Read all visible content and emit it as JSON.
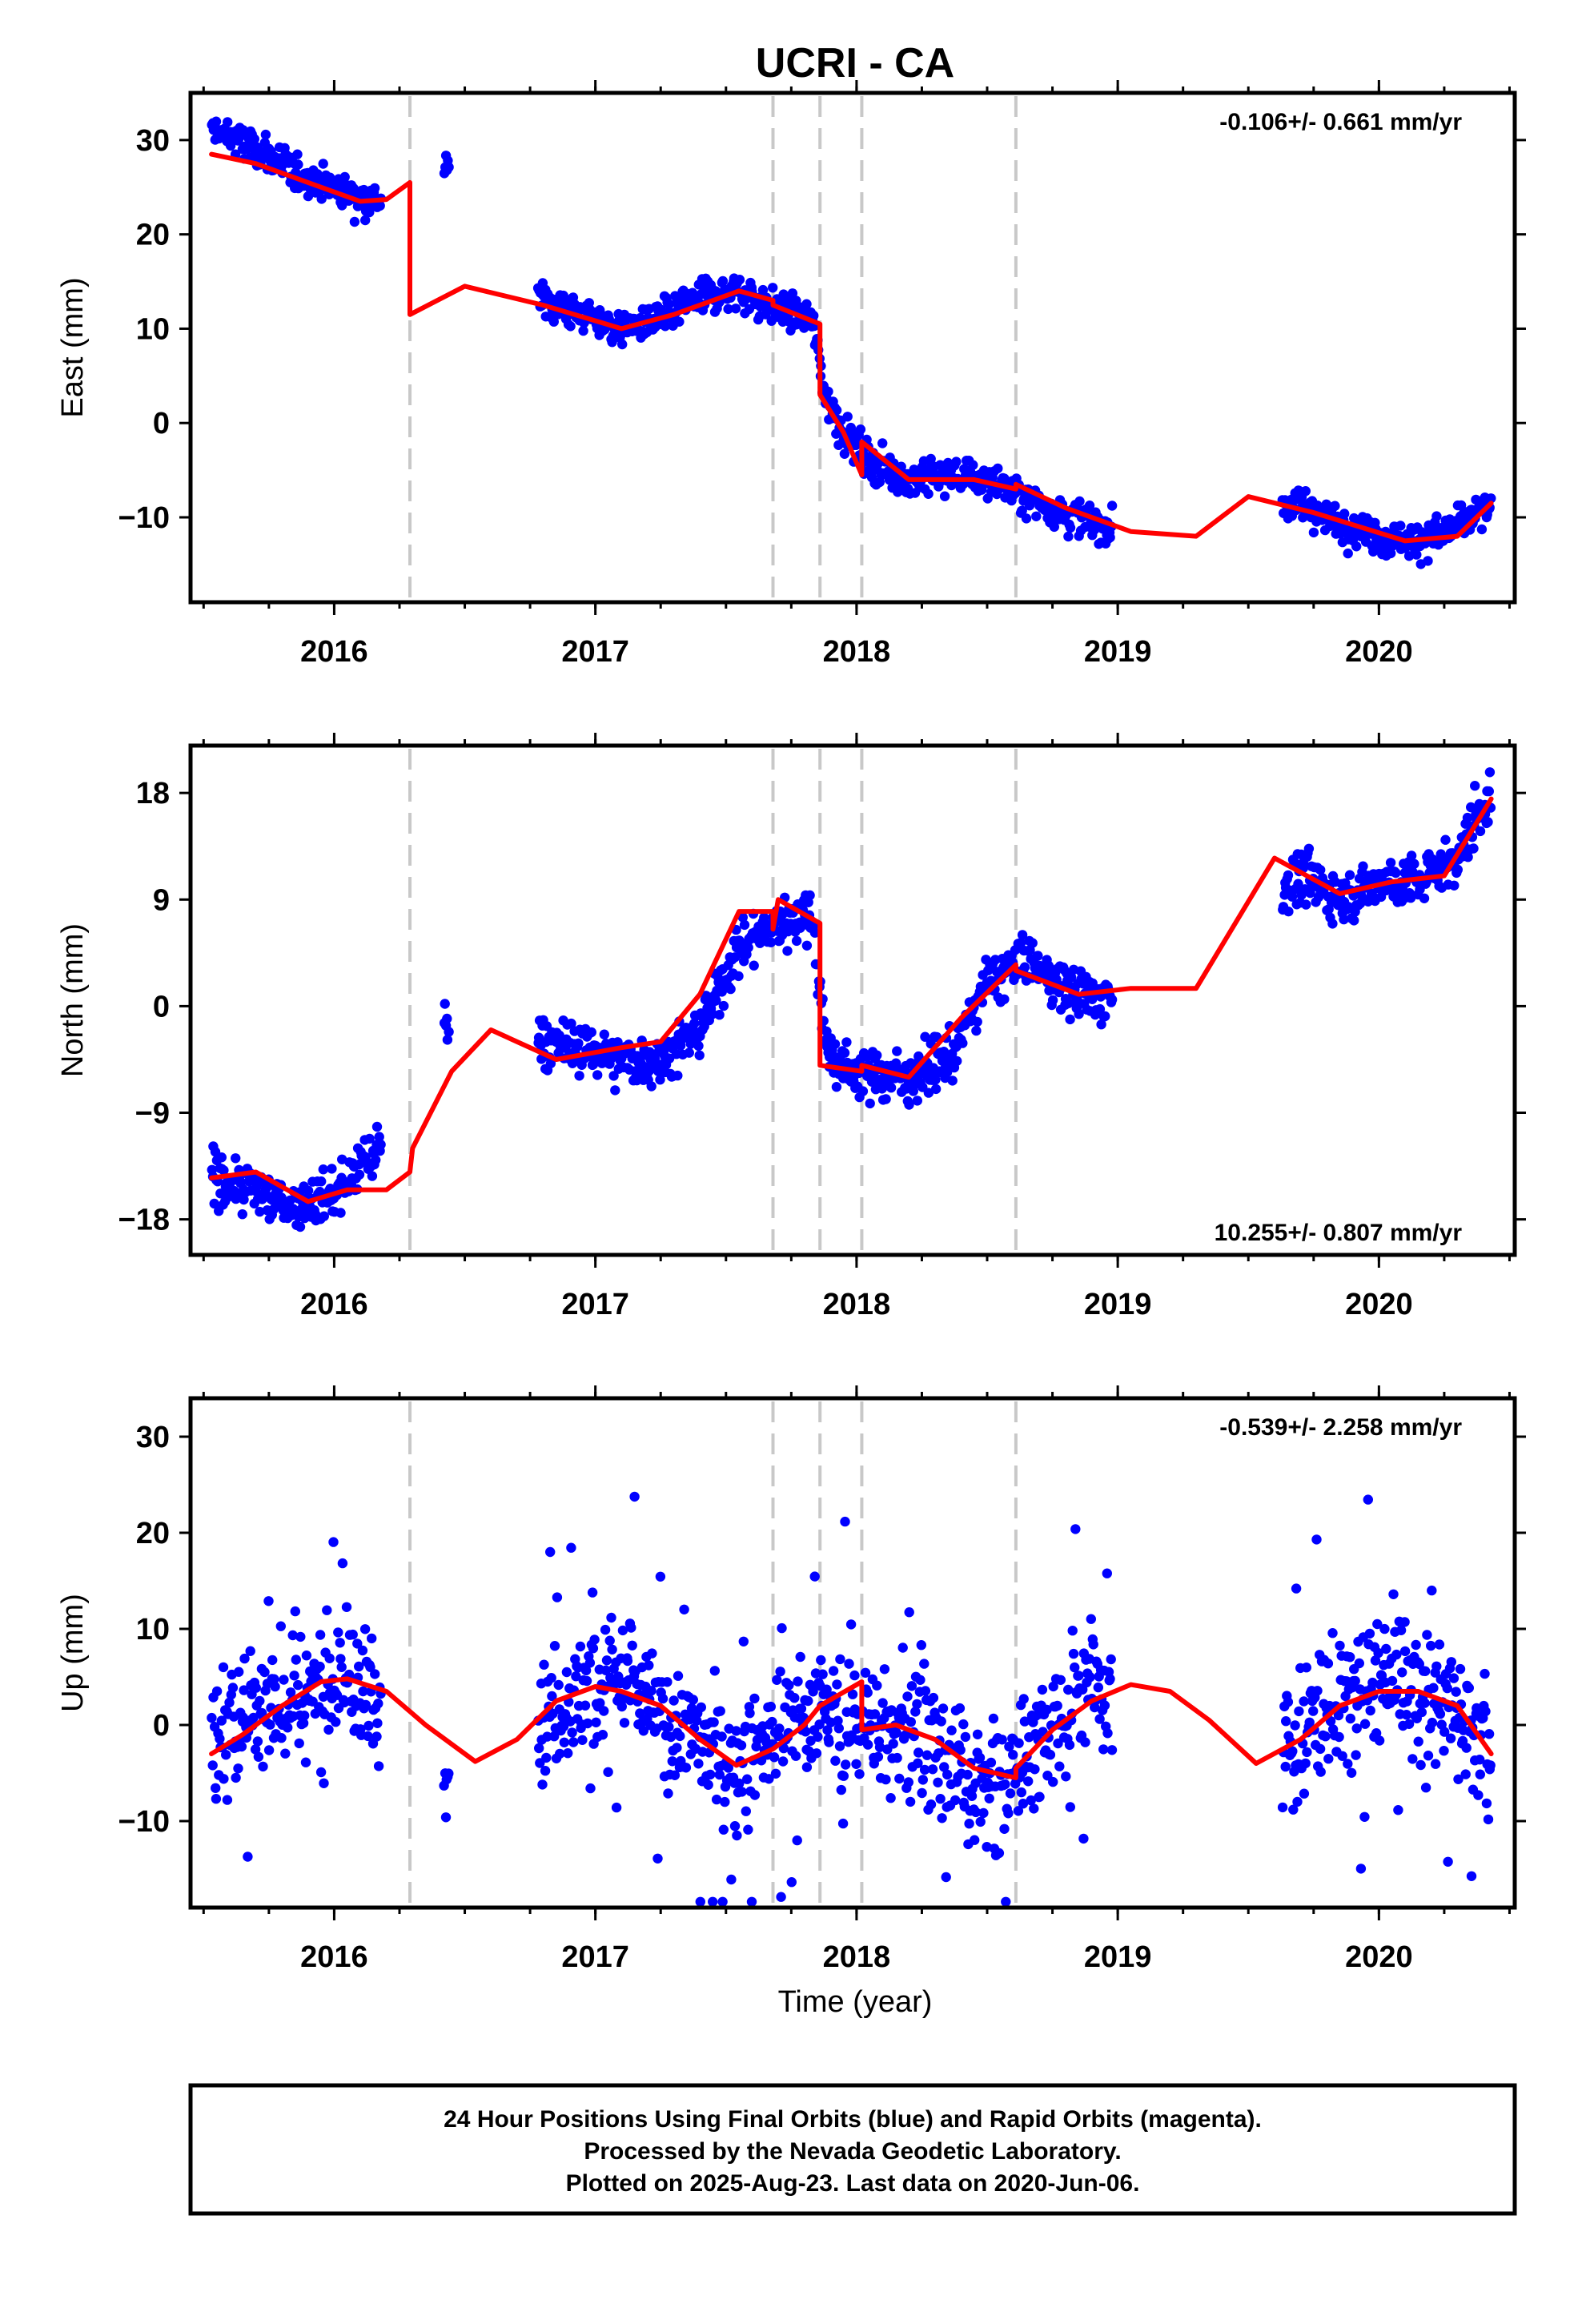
{
  "chart_data": {
    "type": "scatter",
    "title": "UCRI - CA",
    "xlabel": "Time (year)",
    "xlim": [
      2015.45,
      2020.52
    ],
    "x_ticks": [
      2016,
      2017,
      2018,
      2019,
      2020
    ],
    "x_tick_labels": [
      "2016",
      "2017",
      "2018",
      "2019",
      "2020"
    ],
    "x_minor_step": 0.25,
    "equipment_changes": [
      2016.29,
      2017.68,
      2017.86,
      2018.02,
      2018.61
    ],
    "data_coverage": [
      [
        2015.53,
        2016.18
      ],
      [
        2016.42,
        2016.44
      ],
      [
        2016.78,
        2018.98
      ],
      [
        2019.63,
        2020.43
      ]
    ],
    "fit_coverage": [
      2015.53,
      2020.43
    ],
    "legend": "none",
    "grid": false,
    "panels": [
      {
        "ylabel": "East (mm)",
        "ylim": [
          -19,
          35
        ],
        "y_ticks": [
          30,
          20,
          10,
          0,
          -10
        ],
        "y_tick_labels": [
          "30",
          "20",
          "10",
          "0",
          "−10"
        ],
        "rate": "-0.106+/- 0.661 mm/yr",
        "rate_position": "top-right",
        "series": [
          {
            "name": "Final Orbits",
            "color": "#0000ff",
            "kind": "scatter",
            "x": [
              2015.55,
              2015.7,
              2015.85,
              2016.0,
              2016.15,
              2016.43,
              2016.8,
              2016.95,
              2017.1,
              2017.25,
              2017.4,
              2017.55,
              2017.7,
              2017.83,
              2017.88,
              2017.95,
              2018.05,
              2018.2,
              2018.35,
              2018.5,
              2018.65,
              2018.8,
              2018.95,
              2019.7,
              2019.85,
              2020.0,
              2020.15,
              2020.3,
              2020.42
            ],
            "y": [
              31,
              29,
              26.5,
              25,
              23.5,
              27,
              13,
              11.5,
              10,
              11,
              13.5,
              14,
              12,
              11,
              3,
              -1,
              -4,
              -6,
              -5.5,
              -6,
              -8,
              -9.5,
              -11,
              -8.5,
              -10.5,
              -12,
              -12.5,
              -11,
              -9
            ]
          },
          {
            "name": "Model",
            "color": "#ff0000",
            "kind": "line",
            "x": [
              2015.53,
              2015.7,
              2015.9,
              2016.1,
              2016.2,
              2016.29,
              2016.29,
              2016.5,
              2016.8,
              2017.1,
              2017.3,
              2017.55,
              2017.68,
              2017.68,
              2017.86,
              2017.86,
              2017.95,
              2018.02,
              2018.02,
              2018.2,
              2018.45,
              2018.61,
              2018.61,
              2018.8,
              2019.05,
              2019.3,
              2019.5,
              2019.75,
              2020.1,
              2020.3,
              2020.43
            ],
            "y": [
              28.5,
              27.5,
              25.5,
              23.5,
              23.7,
              25.5,
              11.5,
              14.5,
              12.5,
              10,
              11.5,
              14,
              13,
              12.5,
              10.5,
              3,
              -1,
              -5.5,
              -2,
              -6,
              -6,
              -7,
              -6.5,
              -9,
              -11.5,
              -12,
              -7.8,
              -9.5,
              -12.5,
              -12,
              -8.5
            ]
          }
        ]
      },
      {
        "ylabel": "North (mm)",
        "ylim": [
          -21,
          22
        ],
        "y_ticks": [
          18,
          9,
          0,
          -9,
          -18
        ],
        "y_tick_labels": [
          "18",
          "9",
          "0",
          "−9",
          "−18"
        ],
        "rate": "10.255+/- 0.807 mm/yr",
        "rate_position": "bottom-right",
        "series": [
          {
            "name": "Final Orbits",
            "color": "#0000ff",
            "kind": "scatter",
            "x": [
              2015.55,
              2015.7,
              2015.85,
              2016.0,
              2016.15,
              2016.43,
              2016.8,
              2016.95,
              2017.1,
              2017.25,
              2017.4,
              2017.55,
              2017.7,
              2017.83,
              2017.88,
              2017.95,
              2018.05,
              2018.2,
              2018.35,
              2018.5,
              2018.65,
              2018.8,
              2018.95,
              2019.7,
              2019.85,
              2020.0,
              2020.15,
              2020.3,
              2020.42
            ],
            "y": [
              -14.5,
              -15.5,
              -17,
              -16,
              -12.5,
              -1,
              -3,
              -3.5,
              -4.5,
              -4.5,
              -2,
              5,
              7,
              8,
              -3,
              -5.5,
              -5.5,
              -6,
              -4.5,
              2,
              4,
              1.5,
              0.5,
              11,
              9,
              10.5,
              10.5,
              12.5,
              18
            ]
          },
          {
            "name": "Model",
            "color": "#ff0000",
            "kind": "line",
            "x": [
              2015.53,
              2015.7,
              2015.9,
              2016.05,
              2016.2,
              2016.29,
              2016.3,
              2016.45,
              2016.6,
              2016.85,
              2017.1,
              2017.25,
              2017.4,
              2017.55,
              2017.68,
              2017.68,
              2017.7,
              2017.86,
              2017.86,
              2018.02,
              2018.02,
              2018.2,
              2018.4,
              2018.61,
              2018.61,
              2018.85,
              2019.05,
              2019.3,
              2019.6,
              2019.85,
              2020.05,
              2020.25,
              2020.43
            ],
            "y": [
              -14.5,
              -14,
              -16.5,
              -15.5,
              -15.5,
              -14,
              -12,
              -5.5,
              -2,
              -4.5,
              -3.5,
              -3,
              1,
              8,
              8,
              6.5,
              9,
              7,
              -5,
              -5.5,
              -5,
              -6,
              -1,
              3.5,
              3,
              1,
              1.5,
              1.5,
              12.5,
              9.5,
              10.5,
              11,
              17.5
            ]
          }
        ]
      },
      {
        "ylabel": "Up (mm)",
        "ylim": [
          -19,
          34
        ],
        "y_ticks": [
          30,
          20,
          10,
          0,
          -10
        ],
        "y_tick_labels": [
          "30",
          "20",
          "10",
          "0",
          "−10"
        ],
        "rate": "-0.539+/- 2.258 mm/yr",
        "rate_position": "top-right",
        "series": [
          {
            "name": "Final Orbits",
            "color": "#0000ff",
            "kind": "scatter",
            "x": [
              2015.55,
              2015.65,
              2015.75,
              2015.85,
              2015.95,
              2016.05,
              2016.15,
              2016.43,
              2016.8,
              2016.9,
              2017.0,
              2017.1,
              2017.2,
              2017.3,
              2017.4,
              2017.5,
              2017.6,
              2017.7,
              2017.8,
              2017.9,
              2018.0,
              2018.1,
              2018.2,
              2018.3,
              2018.4,
              2018.5,
              2018.6,
              2018.7,
              2018.8,
              2018.9,
              2019.65,
              2019.75,
              2019.85,
              2019.95,
              2020.05,
              2020.15,
              2020.25,
              2020.35,
              2020.42
            ],
            "y": [
              -3,
              0.5,
              1.5,
              3,
              4.5,
              5,
              3,
              -1,
              0.5,
              3,
              4,
              5,
              2,
              0,
              -2,
              -4,
              -3,
              0,
              1,
              1.5,
              1,
              -1,
              0.5,
              -2,
              -5,
              -6,
              -5,
              -1,
              2,
              4,
              -2,
              1,
              2,
              4,
              5,
              4,
              2,
              0,
              -3
            ]
          },
          {
            "name": "Model",
            "color": "#ff0000",
            "kind": "line",
            "x": [
              2015.53,
              2015.65,
              2015.8,
              2015.95,
              2016.05,
              2016.2,
              2016.35,
              2016.54,
              2016.7,
              2016.85,
              2017.0,
              2017.1,
              2017.25,
              2017.4,
              2017.54,
              2017.68,
              2017.8,
              2017.86,
              2018.02,
              2018.02,
              2018.15,
              2018.3,
              2018.45,
              2018.61,
              2018.61,
              2018.75,
              2018.9,
              2019.05,
              2019.2,
              2019.35,
              2019.53,
              2019.7,
              2019.85,
              2020.0,
              2020.15,
              2020.3,
              2020.43
            ],
            "y": [
              -3,
              -1,
              2,
              4.5,
              4.8,
              3.5,
              0,
              -3.8,
              -1.5,
              2.5,
              4,
              3.5,
              2,
              -1.5,
              -4.2,
              -2.5,
              0,
              2,
              4.5,
              -0.5,
              0,
              -1.5,
              -4.5,
              -5.5,
              -4.5,
              -0.5,
              2.5,
              4.2,
              3.5,
              0.5,
              -4,
              -1.5,
              2,
              3.5,
              3.5,
              2,
              -3
            ]
          }
        ]
      }
    ]
  },
  "footer": {
    "line1": "24 Hour Positions Using Final Orbits (blue) and Rapid Orbits (magenta).",
    "line2": "Processed by the Nevada Geodetic Laboratory.",
    "line3": "Plotted on 2025-Aug-23. Last data on 2020-Jun-06."
  }
}
